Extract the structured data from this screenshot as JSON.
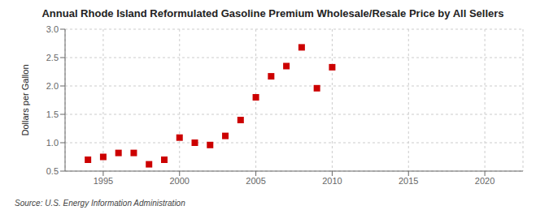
{
  "chart_data": {
    "type": "scatter",
    "title": "Annual Rhode Island Reformulated Gasoline Premium Wholesale/Resale Price by All Sellers",
    "ylabel": "Dollars per Gallon",
    "source": "Source: U.S. Energy Information Administration",
    "x": [
      1994,
      1995,
      1996,
      1997,
      1998,
      1999,
      2000,
      2001,
      2002,
      2003,
      2004,
      2005,
      2006,
      2007,
      2008,
      2009,
      2010
    ],
    "values": [
      0.7,
      0.75,
      0.82,
      0.82,
      0.62,
      0.7,
      1.09,
      1.0,
      0.96,
      1.12,
      1.4,
      1.8,
      2.17,
      2.35,
      2.68,
      1.96,
      2.33
    ],
    "color": "#cc0000",
    "marker": "square",
    "xlim": [
      1992.5,
      2022.5
    ],
    "ylim": [
      0.5,
      3.0
    ],
    "xticks": [
      1995,
      2000,
      2005,
      2010,
      2015,
      2020
    ],
    "yticks": [
      0.5,
      {
        "value": 1.0,
        "label": "1.0"
      },
      1.5,
      {
        "value": 2.0,
        "label": "2.0"
      },
      2.5,
      {
        "value": 3.0,
        "label": "3.0"
      }
    ],
    "grid": true
  }
}
